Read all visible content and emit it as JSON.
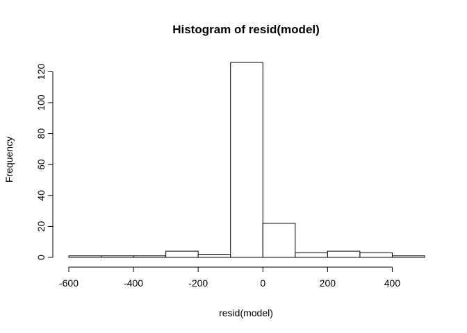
{
  "chart_data": {
    "type": "bar",
    "title": "Histogram of resid(model)",
    "xlabel": "resid(model)",
    "ylabel": "Frequency",
    "bins": [
      {
        "start": -600,
        "end": -500,
        "count": 1
      },
      {
        "start": -500,
        "end": -400,
        "count": 1
      },
      {
        "start": -400,
        "end": -300,
        "count": 1
      },
      {
        "start": -300,
        "end": -200,
        "count": 4
      },
      {
        "start": -200,
        "end": -100,
        "count": 2
      },
      {
        "start": -100,
        "end": 0,
        "count": 126
      },
      {
        "start": 0,
        "end": 100,
        "count": 22
      },
      {
        "start": 100,
        "end": 200,
        "count": 3
      },
      {
        "start": 200,
        "end": 300,
        "count": 4
      },
      {
        "start": 300,
        "end": 400,
        "count": 3
      },
      {
        "start": 400,
        "end": 500,
        "count": 1
      }
    ],
    "xlim": [
      -600,
      500
    ],
    "ylim": [
      0,
      126
    ],
    "xticks": [
      "-600",
      "-400",
      "-200",
      "0",
      "200",
      "400"
    ],
    "yticks": [
      "0",
      "20",
      "40",
      "60",
      "80",
      "100",
      "120"
    ],
    "grid": false,
    "colors": {
      "bar_fill": "#ffffff",
      "bar_stroke": "#000000"
    }
  }
}
